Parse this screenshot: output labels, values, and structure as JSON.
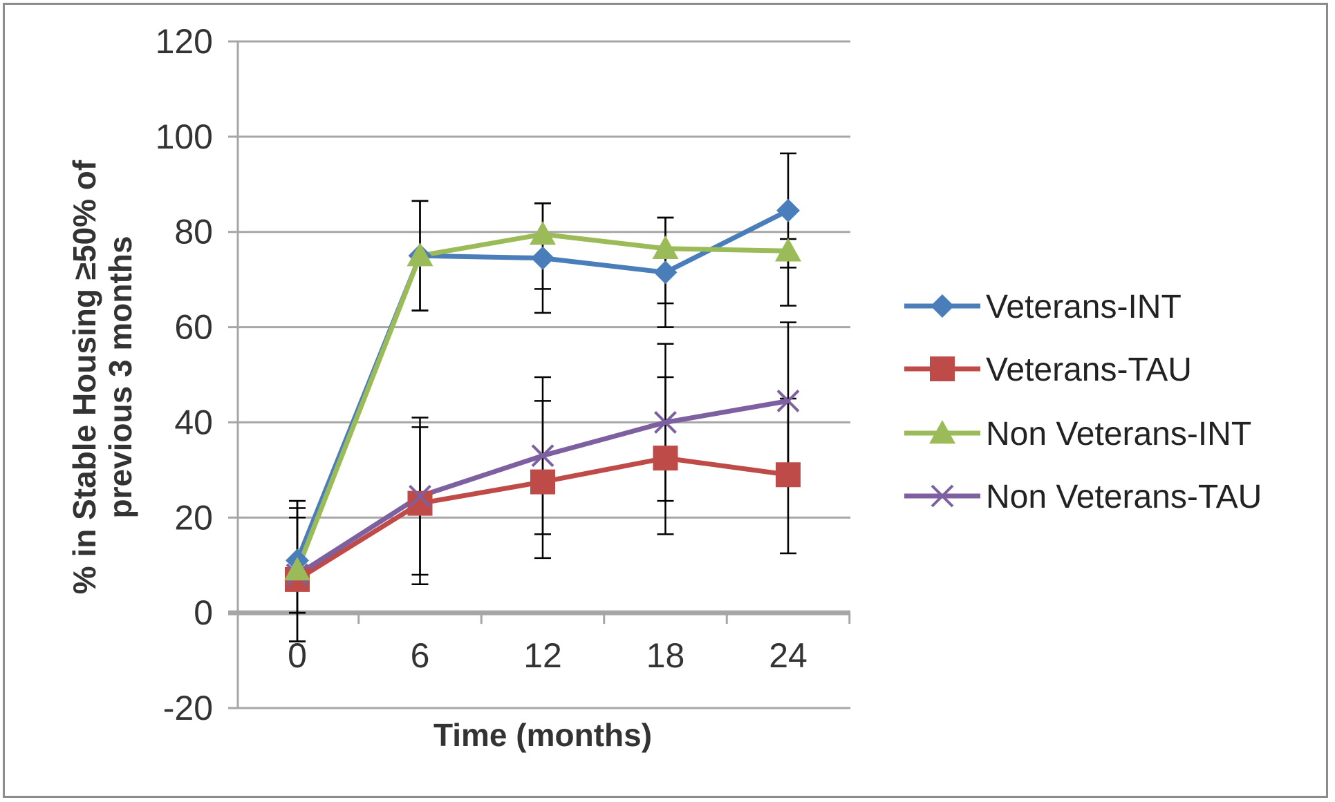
{
  "chart_data": {
    "type": "line",
    "title": "",
    "xlabel": "Time (months)",
    "ylabel_lines": [
      "% in Stable Housing ≥50% of",
      "previous 3 months"
    ],
    "x": [
      0,
      6,
      12,
      18,
      24
    ],
    "xlim": [
      0,
      24
    ],
    "ylim": [
      -20,
      120
    ],
    "yticks": [
      -20,
      0,
      20,
      40,
      60,
      80,
      100,
      120
    ],
    "grid": true,
    "legend_position": "right",
    "series": [
      {
        "name": "Veterans-INT",
        "color": "#4a7ebb",
        "marker": "diamond",
        "values": [
          11,
          75,
          74.5,
          71.5,
          84.5
        ],
        "error_low": [
          0,
          63.5,
          63,
          60,
          72.5
        ],
        "error_high": [
          23.5,
          86.5,
          86,
          83,
          96.5
        ]
      },
      {
        "name": "Veterans-TAU",
        "color": "#be4b48",
        "marker": "square",
        "values": [
          7,
          23,
          27.5,
          32.5,
          29
        ],
        "error_low": [
          -6,
          6,
          11.5,
          16.5,
          12.5
        ],
        "error_high": [
          20,
          39,
          44.5,
          49.5,
          45
        ]
      },
      {
        "name": "Non Veterans-INT",
        "color": "#9bbb59",
        "marker": "triangle",
        "values": [
          9,
          75,
          79.5,
          76.5,
          76
        ],
        "error_low": [
          0,
          63.5,
          68,
          65,
          64.5
        ],
        "error_high": [
          23.5,
          86.5,
          86,
          83,
          78.5
        ]
      },
      {
        "name": "Non Veterans-TAU",
        "color": "#7d60a0",
        "marker": "x",
        "values": [
          8,
          24.5,
          33,
          40,
          44.5
        ],
        "error_low": [
          -6,
          8,
          16.5,
          23.5,
          28
        ],
        "error_high": [
          22,
          41,
          49.5,
          56.5,
          61
        ]
      }
    ]
  }
}
